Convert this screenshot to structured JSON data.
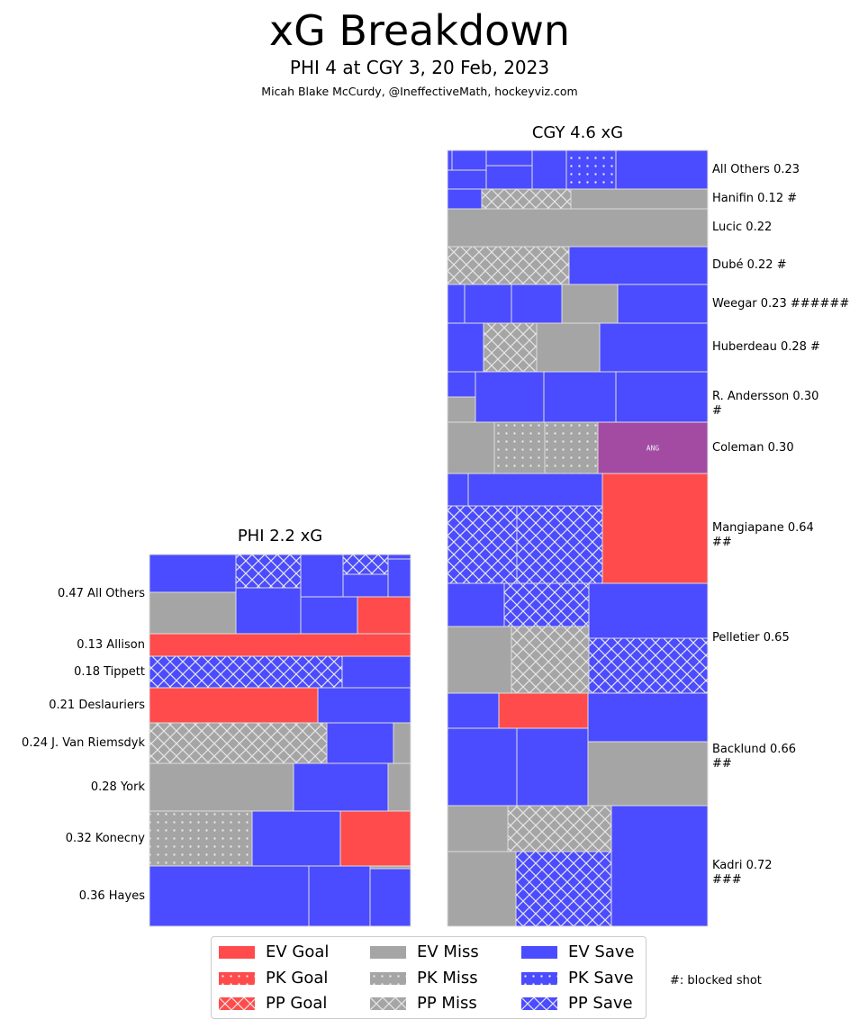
{
  "header": {
    "title": "xG Breakdown",
    "subtitle": "PHI 4 at CGY 3, 20 Feb, 2023",
    "credit": "Micah Blake McCurdy, @IneffectiveMath, hockeyviz.com"
  },
  "colors": {
    "goal": "#ff4b4b",
    "miss": "#a5a5a5",
    "save": "#4b4bff",
    "empty_net": "#a34ba3",
    "border": "#dddddd"
  },
  "chart_data": {
    "type": "treemap",
    "title": "xG Breakdown",
    "teams": [
      {
        "id": "PHI",
        "title": "PHI 2.2 xG",
        "total_xg": 2.2,
        "label_side": "left",
        "players": [
          {
            "label": "0.47 All Others",
            "xg": 0.47,
            "blocked": 0,
            "shots": [
              {
                "type": "EV Save"
              },
              {
                "type": "PP Save"
              },
              {
                "type": "EV Save"
              },
              {
                "type": "PP Save"
              },
              {
                "type": "EV Save"
              },
              {
                "type": "EV Save"
              },
              {
                "type": "EV Save"
              },
              {
                "type": "EV Miss"
              },
              {
                "type": "EV Save"
              },
              {
                "type": "EV Save"
              },
              {
                "type": "EV Goal"
              }
            ]
          },
          {
            "label": "0.13 Allison",
            "xg": 0.13,
            "blocked": 0,
            "shots": [
              {
                "type": "EV Goal"
              }
            ]
          },
          {
            "label": "0.18 Tippett",
            "xg": 0.18,
            "blocked": 0,
            "shots": [
              {
                "type": "PP Save"
              },
              {
                "type": "EV Save"
              }
            ]
          },
          {
            "label": "0.21 Deslauriers",
            "xg": 0.21,
            "blocked": 0,
            "shots": [
              {
                "type": "EV Goal"
              },
              {
                "type": "EV Save"
              }
            ]
          },
          {
            "label": "0.24 J. Van Riemsdyk",
            "xg": 0.24,
            "blocked": 0,
            "shots": [
              {
                "type": "PP Miss"
              },
              {
                "type": "EV Save"
              },
              {
                "type": "EV Miss"
              }
            ]
          },
          {
            "label": "0.28 York",
            "xg": 0.28,
            "blocked": 0,
            "shots": [
              {
                "type": "EV Miss"
              },
              {
                "type": "EV Save"
              },
              {
                "type": "EV Miss"
              }
            ]
          },
          {
            "label": "0.32 Konecny",
            "xg": 0.32,
            "blocked": 0,
            "shots": [
              {
                "type": "PK Miss"
              },
              {
                "type": "EV Save"
              },
              {
                "type": "EV Goal"
              }
            ]
          },
          {
            "label": "0.36 Hayes",
            "xg": 0.36,
            "blocked": 0,
            "shots": [
              {
                "type": "EV Save"
              },
              {
                "type": "EV Save"
              },
              {
                "type": "EV Miss"
              },
              {
                "type": "EV Save"
              }
            ]
          }
        ]
      },
      {
        "id": "CGY",
        "title": "CGY 4.6 xG",
        "total_xg": 4.6,
        "label_side": "right",
        "players": [
          {
            "label": "All Others 0.23",
            "xg": 0.23,
            "blocked": 0,
            "shots": [
              {
                "type": "EV Save"
              },
              {
                "type": "EV Save"
              },
              {
                "type": "EV Save"
              },
              {
                "type": "EV Save"
              },
              {
                "type": "EV Save"
              },
              {
                "type": "EV Save"
              },
              {
                "type": "PK Save"
              },
              {
                "type": "EV Goal"
              },
              {
                "type": "EV Save"
              }
            ]
          },
          {
            "label": "Hanifin 0.12 #",
            "xg": 0.12,
            "blocked": 1,
            "shots": [
              {
                "type": "EV Save"
              },
              {
                "type": "PP Miss"
              },
              {
                "type": "EV Miss"
              }
            ]
          },
          {
            "label": "Lucic 0.22",
            "xg": 0.22,
            "blocked": 0,
            "shots": [
              {
                "type": "EV Miss"
              }
            ]
          },
          {
            "label": "Dubé 0.22 #",
            "xg": 0.22,
            "blocked": 1,
            "shots": [
              {
                "type": "PP Miss"
              },
              {
                "type": "EV Save"
              }
            ]
          },
          {
            "label": "Weegar 0.23 ######",
            "xg": 0.23,
            "blocked": 6,
            "shots": [
              {
                "type": "EV Save"
              },
              {
                "type": "EV Save"
              },
              {
                "type": "EV Save"
              },
              {
                "type": "EV Miss"
              },
              {
                "type": "EV Save"
              }
            ]
          },
          {
            "label": "Huberdeau 0.28 #",
            "xg": 0.28,
            "blocked": 1,
            "shots": [
              {
                "type": "EV Save"
              },
              {
                "type": "PP Miss"
              },
              {
                "type": "EV Miss"
              },
              {
                "type": "EV Save"
              }
            ]
          },
          {
            "label": "R. Andersson 0.30\n#",
            "xg": 0.3,
            "blocked": 1,
            "shots": [
              {
                "type": "EV Save"
              },
              {
                "type": "EV Miss"
              },
              {
                "type": "EV Save"
              },
              {
                "type": "EV Save"
              },
              {
                "type": "EV Save"
              }
            ]
          },
          {
            "label": "Coleman 0.30",
            "xg": 0.3,
            "blocked": 0,
            "shots": [
              {
                "type": "EV Miss"
              },
              {
                "type": "PK Miss"
              },
              {
                "type": "PK Miss"
              },
              {
                "type": "ENG",
                "tag": "ANG"
              }
            ]
          },
          {
            "label": "Mangiapane 0.64\n##",
            "xg": 0.64,
            "blocked": 2,
            "shots": [
              {
                "type": "EV Save"
              },
              {
                "type": "EV Save"
              },
              {
                "type": "PP Save"
              },
              {
                "type": "PP Save"
              },
              {
                "type": "EV Goal"
              }
            ]
          },
          {
            "label": "Pelletier 0.65",
            "xg": 0.65,
            "blocked": 0,
            "shots": [
              {
                "type": "EV Save"
              },
              {
                "type": "PP Save"
              },
              {
                "type": "EV Miss"
              },
              {
                "type": "PP Miss"
              },
              {
                "type": "EV Save"
              },
              {
                "type": "PP Save"
              }
            ]
          },
          {
            "label": "Backlund 0.66\n##",
            "xg": 0.66,
            "blocked": 2,
            "shots": [
              {
                "type": "EV Save"
              },
              {
                "type": "EV Goal"
              },
              {
                "type": "EV Save"
              },
              {
                "type": "EV Save"
              },
              {
                "type": "EV Save"
              },
              {
                "type": "EV Miss"
              }
            ]
          },
          {
            "label": "Kadri 0.72\n###",
            "xg": 0.72,
            "blocked": 3,
            "shots": [
              {
                "type": "EV Miss"
              },
              {
                "type": "PP Miss"
              },
              {
                "type": "EV Miss"
              },
              {
                "type": "PP Save"
              },
              {
                "type": "EV Save"
              }
            ]
          }
        ]
      }
    ],
    "legend": {
      "placement": "bottom-center",
      "entries": [
        {
          "label": "EV Goal",
          "color": "goal",
          "pattern": "none"
        },
        {
          "label": "PK Goal",
          "color": "goal",
          "pattern": "dots"
        },
        {
          "label": "PP Goal",
          "color": "goal",
          "pattern": "cross"
        },
        {
          "label": "EV Miss",
          "color": "miss",
          "pattern": "none"
        },
        {
          "label": "PK Miss",
          "color": "miss",
          "pattern": "dots"
        },
        {
          "label": "PP Miss",
          "color": "miss",
          "pattern": "cross"
        },
        {
          "label": "EV Save",
          "color": "save",
          "pattern": "none"
        },
        {
          "label": "PK Save",
          "color": "save",
          "pattern": "dots"
        },
        {
          "label": "PP Save",
          "color": "save",
          "pattern": "cross"
        }
      ]
    },
    "note": "#: blocked shot"
  }
}
